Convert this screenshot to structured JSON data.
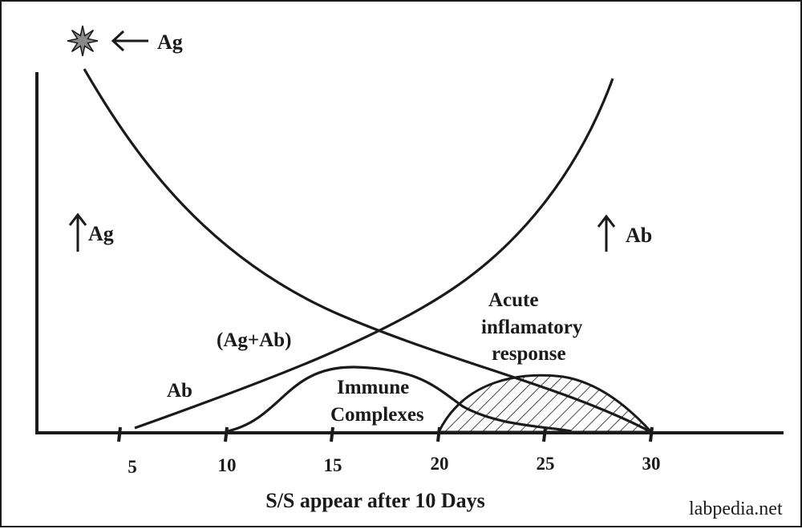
{
  "antigen_marker": {
    "label": "Ag",
    "icon": "star-icon",
    "arrow": "left-arrow-icon"
  },
  "left_indicator": {
    "label": "Ag",
    "arrow": "up-arrow-icon"
  },
  "right_indicator": {
    "label": "Ab",
    "arrow": "up-arrow-icon"
  },
  "curve_labels": {
    "complex": "(Ag+Ab)",
    "antibody": "Ab",
    "immune_complexes": [
      "Immune",
      "Complexes"
    ],
    "inflammatory": [
      "Acute",
      "inflamatory",
      "response"
    ]
  },
  "x_axis": {
    "ticks": [
      "5",
      "10",
      "15",
      "20",
      "25",
      "30"
    ],
    "title": "S/S appear after 10 Days"
  },
  "watermark": "labpedia.net",
  "colors": {
    "ink": "#1a1a1a",
    "background": "#ffffff",
    "star": "#8a8a8a"
  }
}
